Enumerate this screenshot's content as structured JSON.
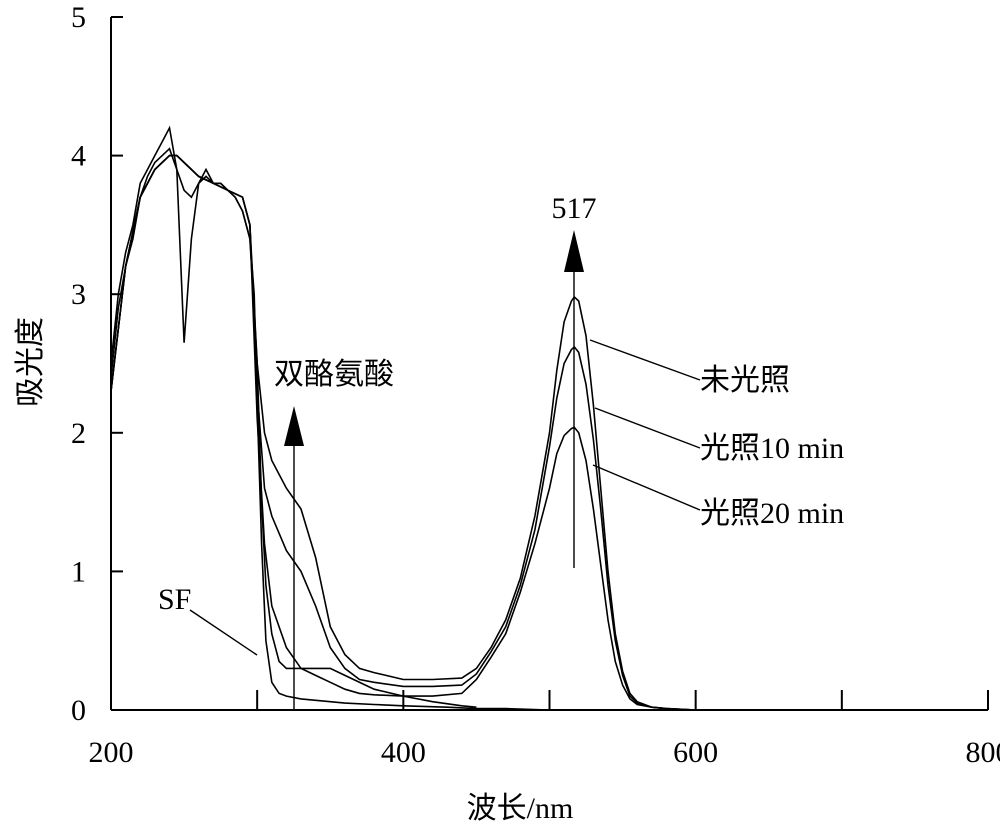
{
  "chart_data": {
    "type": "line",
    "xlabel": "波长/nm",
    "ylabel": "吸光度",
    "xlim": [
      200,
      800
    ],
    "ylim": [
      0,
      5
    ],
    "xticks": [
      200,
      400,
      600,
      800
    ],
    "yticks": [
      0,
      1,
      2,
      3,
      4,
      5
    ],
    "grid": false,
    "series": [
      {
        "name": "SF",
        "x": [
          200,
          205,
          210,
          215,
          220,
          225,
          230,
          235,
          240,
          245,
          250,
          255,
          260,
          265,
          270,
          275,
          280,
          285,
          290,
          295,
          298,
          300,
          303,
          306,
          310,
          315,
          320,
          330,
          340,
          360,
          380,
          400,
          430,
          450,
          470,
          500
        ],
        "y": [
          2.4,
          2.9,
          3.2,
          3.4,
          3.7,
          3.85,
          3.95,
          4.0,
          4.05,
          3.9,
          3.75,
          3.7,
          3.8,
          3.85,
          3.8,
          3.8,
          3.75,
          3.7,
          3.6,
          3.4,
          3.0,
          2.2,
          1.2,
          0.5,
          0.2,
          0.12,
          0.1,
          0.08,
          0.07,
          0.05,
          0.04,
          0.03,
          0.02,
          0.01,
          0.01,
          0.0
        ]
      },
      {
        "name": "双酪氨酸",
        "x": [
          200,
          205,
          210,
          215,
          220,
          225,
          230,
          235,
          240,
          245,
          250,
          255,
          260,
          265,
          270,
          275,
          280,
          285,
          290,
          295,
          300,
          303,
          306,
          310,
          315,
          320,
          330,
          340,
          350,
          360,
          380,
          400,
          420,
          440,
          450
        ],
        "y": [
          2.5,
          3.0,
          3.3,
          3.5,
          3.8,
          3.9,
          4.0,
          4.1,
          4.2,
          3.9,
          2.65,
          3.4,
          3.8,
          3.9,
          3.8,
          3.8,
          3.75,
          3.7,
          3.6,
          3.4,
          2.5,
          1.5,
          0.9,
          0.55,
          0.35,
          0.3,
          0.3,
          0.3,
          0.3,
          0.25,
          0.15,
          0.1,
          0.06,
          0.03,
          0.02
        ]
      },
      {
        "name": "未光照",
        "x": [
          200,
          210,
          220,
          230,
          240,
          245,
          250,
          260,
          270,
          280,
          290,
          295,
          300,
          305,
          310,
          320,
          330,
          340,
          350,
          360,
          370,
          380,
          400,
          420,
          440,
          450,
          460,
          470,
          480,
          490,
          500,
          505,
          510,
          515,
          517,
          520,
          525,
          530,
          535,
          540,
          545,
          550,
          555,
          560,
          570,
          580,
          600,
          650,
          700
        ],
        "y": [
          2.3,
          3.2,
          3.7,
          3.9,
          4.0,
          4.0,
          3.95,
          3.85,
          3.8,
          3.75,
          3.7,
          3.5,
          2.5,
          2.0,
          1.8,
          1.6,
          1.45,
          1.1,
          0.6,
          0.4,
          0.3,
          0.27,
          0.22,
          0.22,
          0.23,
          0.3,
          0.45,
          0.65,
          0.95,
          1.4,
          2.0,
          2.45,
          2.8,
          2.95,
          2.98,
          2.95,
          2.7,
          2.2,
          1.6,
          1.0,
          0.55,
          0.28,
          0.12,
          0.06,
          0.02,
          0.01,
          0.0,
          0.0,
          0.0
        ]
      },
      {
        "name": "光照10 min",
        "x": [
          200,
          210,
          220,
          230,
          240,
          245,
          250,
          260,
          270,
          280,
          290,
          295,
          300,
          305,
          310,
          320,
          330,
          340,
          350,
          360,
          370,
          380,
          400,
          420,
          440,
          450,
          460,
          470,
          480,
          490,
          500,
          505,
          510,
          515,
          517,
          520,
          525,
          530,
          535,
          540,
          545,
          550,
          555,
          560,
          570,
          580,
          600,
          650,
          700
        ],
        "y": [
          2.3,
          3.2,
          3.7,
          3.9,
          4.0,
          4.0,
          3.95,
          3.85,
          3.8,
          3.75,
          3.7,
          3.5,
          2.3,
          1.6,
          1.4,
          1.15,
          1.0,
          0.75,
          0.45,
          0.3,
          0.22,
          0.2,
          0.17,
          0.17,
          0.18,
          0.26,
          0.42,
          0.6,
          0.9,
          1.3,
          1.9,
          2.25,
          2.5,
          2.6,
          2.62,
          2.58,
          2.35,
          1.95,
          1.45,
          0.9,
          0.5,
          0.25,
          0.1,
          0.05,
          0.02,
          0.01,
          0.0,
          0.0,
          0.0
        ]
      },
      {
        "name": "光照20 min",
        "x": [
          200,
          210,
          220,
          230,
          240,
          245,
          250,
          260,
          270,
          280,
          290,
          295,
          300,
          305,
          310,
          320,
          330,
          340,
          350,
          360,
          370,
          380,
          400,
          420,
          440,
          450,
          460,
          470,
          480,
          490,
          500,
          505,
          510,
          515,
          517,
          520,
          525,
          530,
          535,
          540,
          545,
          550,
          555,
          560,
          570,
          580,
          600,
          650,
          700
        ],
        "y": [
          2.3,
          3.2,
          3.7,
          3.9,
          4.0,
          4.0,
          3.95,
          3.85,
          3.8,
          3.75,
          3.7,
          3.5,
          2.1,
          1.2,
          0.75,
          0.45,
          0.3,
          0.25,
          0.2,
          0.15,
          0.12,
          0.11,
          0.1,
          0.1,
          0.12,
          0.22,
          0.38,
          0.55,
          0.85,
          1.2,
          1.6,
          1.85,
          1.98,
          2.03,
          2.04,
          2.0,
          1.8,
          1.45,
          1.05,
          0.65,
          0.35,
          0.18,
          0.08,
          0.04,
          0.02,
          0.01,
          0.0,
          0.0,
          0.0
        ]
      }
    ],
    "annotations": {
      "peak_label": "517",
      "dityrosine_label": "双酪氨酸",
      "sf_label": "SF",
      "unirradiated_label": "未光照",
      "irr10_label": "光照10 min",
      "irr20_label": "光照20 min"
    }
  }
}
